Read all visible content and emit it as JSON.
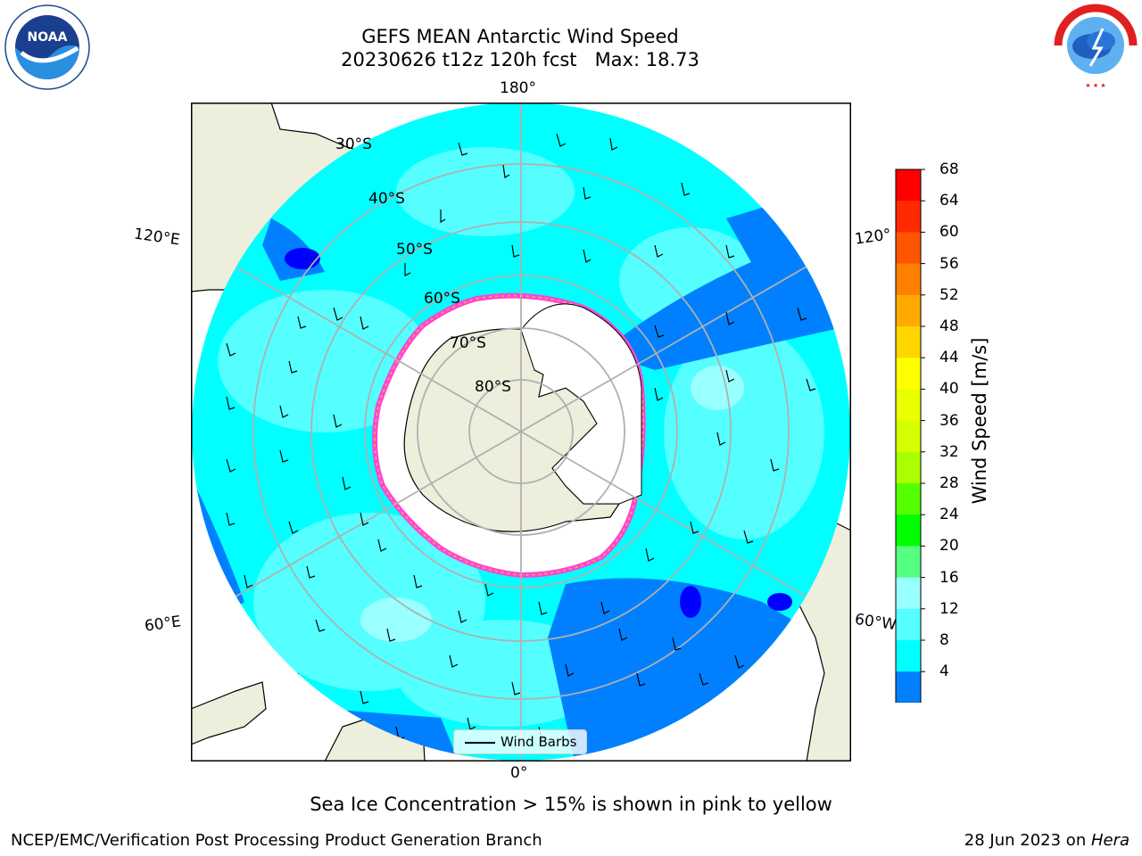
{
  "header": {
    "title_line1": "GEFS MEAN Antarctic Wind Speed",
    "title_line2": "20230626 t12z 120h fcst   Max: 18.73"
  },
  "logos": {
    "noaa_text": "NOAA",
    "nws_text": "NATIONAL WEATHER SERVICE"
  },
  "map": {
    "lon_labels": {
      "top": "180°",
      "bottom": "0°",
      "upper_left": "120°E",
      "upper_right": "120°",
      "lower_left": "60°E",
      "lower_right": "60°W"
    },
    "lat_labels": [
      "30°S",
      "40°S",
      "50°S",
      "60°S",
      "70°S",
      "80°S"
    ],
    "colors": {
      "land": "#eeeedc",
      "ocean_light": "#00ffff",
      "ocean_medium": "#55ffff",
      "ocean_pale": "#99ffff",
      "ocean_blue": "#0080ff",
      "ocean_dark": "#0000ff",
      "ice": "#ffffff",
      "ice_edge": "#ff44dd",
      "grid": "#b0b0b0"
    }
  },
  "legend": {
    "label": "Wind Barbs"
  },
  "colorbar": {
    "label": "Wind Speed [m/s]",
    "ticks": [
      "68",
      "64",
      "60",
      "56",
      "52",
      "48",
      "44",
      "40",
      "36",
      "32",
      "28",
      "24",
      "20",
      "16",
      "12",
      "8",
      "4"
    ],
    "colors": [
      "#ff0000",
      "#ff2a00",
      "#ff5500",
      "#ff8000",
      "#ffaa00",
      "#ffd500",
      "#ffff00",
      "#eaff00",
      "#d5ff00",
      "#aaff00",
      "#55ff00",
      "#00ff00",
      "#55ff80",
      "#99ffff",
      "#55ffff",
      "#00ffff",
      "#0080ff"
    ],
    "extend_color": "#0000ff"
  },
  "caption": "Sea Ice Concentration > 15% is shown in pink to yellow",
  "footer": {
    "left": "NCEP/EMC/Verification Post Processing Product Generation Branch",
    "date": "28 Jun 2023 on ",
    "machine": "Hera"
  }
}
